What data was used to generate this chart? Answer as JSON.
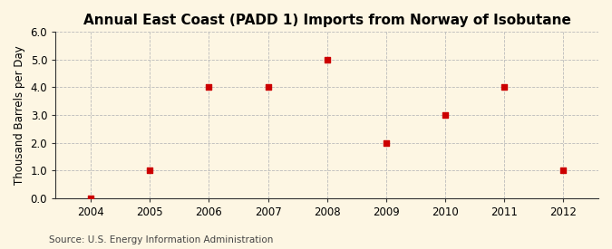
{
  "title": "Annual East Coast (PADD 1) Imports from Norway of Isobutane",
  "ylabel": "Thousand Barrels per Day",
  "source": "Source: U.S. Energy Information Administration",
  "years": [
    2004,
    2005,
    2006,
    2007,
    2008,
    2009,
    2010,
    2011,
    2012
  ],
  "values": [
    0,
    1,
    4,
    4,
    5,
    2,
    3,
    4,
    1
  ],
  "ylim": [
    0.0,
    6.0
  ],
  "yticks": [
    0.0,
    1.0,
    2.0,
    3.0,
    4.0,
    5.0,
    6.0
  ],
  "xlim_left": 2003.4,
  "xlim_right": 2012.6,
  "marker_color": "#cc0000",
  "marker": "s",
  "marker_size": 4,
  "bg_color": "#fdf6e3",
  "plot_bg_color": "#fdf6e3",
  "grid_color": "#bbbbbb",
  "grid_linestyle": "--",
  "title_fontsize": 11,
  "ylabel_fontsize": 8.5,
  "source_fontsize": 7.5,
  "tick_fontsize": 8.5
}
